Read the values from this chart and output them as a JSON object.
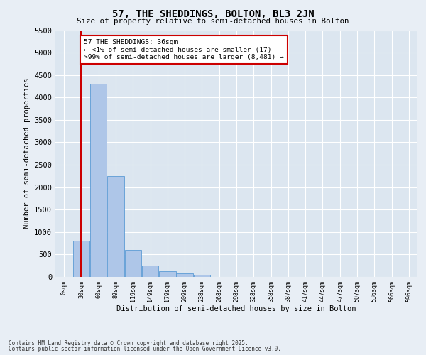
{
  "title": "57, THE SHEDDINGS, BOLTON, BL3 2JN",
  "subtitle": "Size of property relative to semi-detached houses in Bolton",
  "xlabel": "Distribution of semi-detached houses by size in Bolton",
  "ylabel": "Number of semi-detached properties",
  "bin_labels": [
    "0sqm",
    "30sqm",
    "60sqm",
    "89sqm",
    "119sqm",
    "149sqm",
    "179sqm",
    "209sqm",
    "238sqm",
    "268sqm",
    "298sqm",
    "328sqm",
    "358sqm",
    "387sqm",
    "417sqm",
    "447sqm",
    "477sqm",
    "507sqm",
    "536sqm",
    "566sqm",
    "596sqm"
  ],
  "bar_values": [
    0,
    800,
    4300,
    2250,
    600,
    250,
    130,
    80,
    50,
    0,
    0,
    0,
    0,
    0,
    0,
    0,
    0,
    0,
    0,
    0,
    0
  ],
  "bar_color": "#aec6e8",
  "bar_edge_color": "#5b9bd5",
  "property_line_bin": 1,
  "property_line_color": "#cc0000",
  "ylim": [
    0,
    5500
  ],
  "yticks": [
    0,
    500,
    1000,
    1500,
    2000,
    2500,
    3000,
    3500,
    4000,
    4500,
    5000,
    5500
  ],
  "annotation_text": "57 THE SHEDDINGS: 36sqm\n← <1% of semi-detached houses are smaller (17)\n>99% of semi-detached houses are larger (8,481) →",
  "annotation_box_color": "#ffffff",
  "annotation_box_edge": "#cc0000",
  "bg_color": "#e8eef5",
  "plot_bg_color": "#dce6f0",
  "footer_line1": "Contains HM Land Registry data © Crown copyright and database right 2025.",
  "footer_line2": "Contains public sector information licensed under the Open Government Licence v3.0."
}
